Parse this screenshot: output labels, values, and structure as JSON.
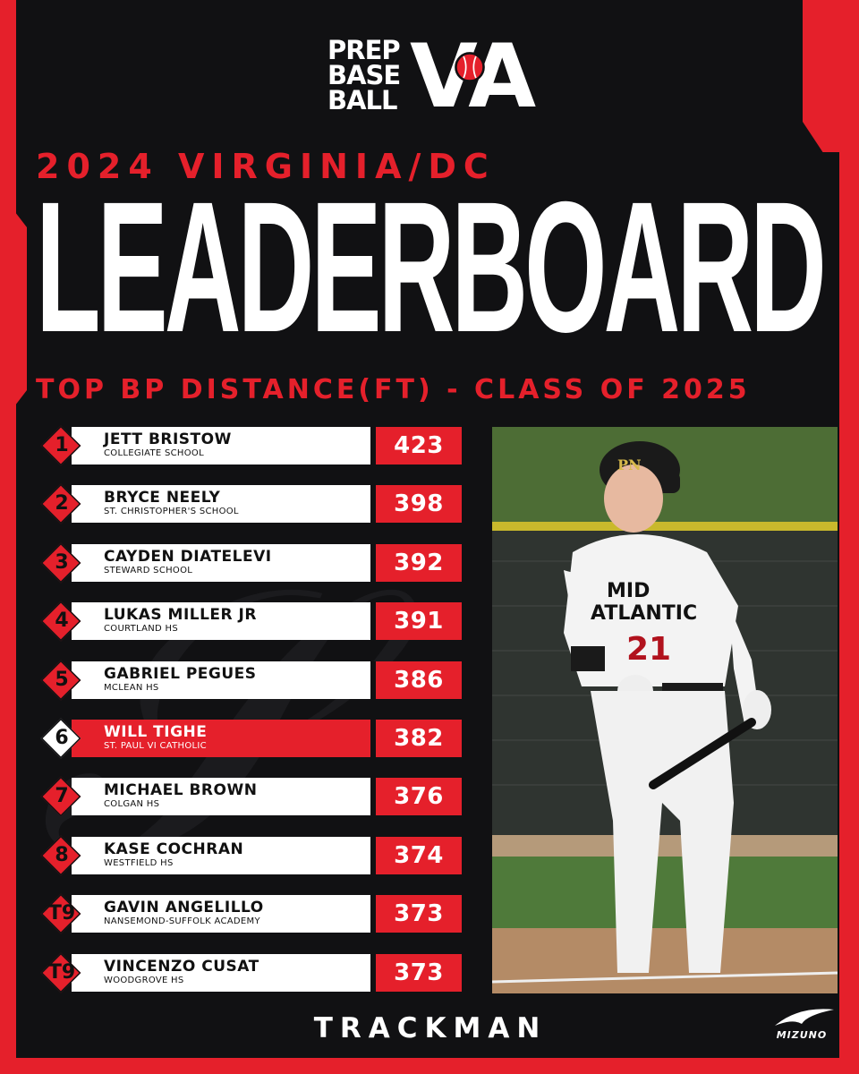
{
  "logo": {
    "line1": "PREP",
    "line2": "BASE",
    "line3": "BALL",
    "mark": "VA"
  },
  "header": {
    "subtitle_top": "2024 VIRGINIA/DC",
    "title": "LEADERBOARD",
    "subtitle_bottom": "TOP BP DISTANCE(FT) - CLASS OF 2025"
  },
  "leaderboard": [
    {
      "rank": "1",
      "name": "JETT BRISTOW",
      "school": "COLLEGIATE SCHOOL",
      "distance": "423"
    },
    {
      "rank": "2",
      "name": "BRYCE NEELY",
      "school": "ST. CHRISTOPHER'S SCHOOL",
      "distance": "398"
    },
    {
      "rank": "3",
      "name": "CAYDEN DIATELEVI",
      "school": "STEWARD SCHOOL",
      "distance": "392"
    },
    {
      "rank": "4",
      "name": "LUKAS MILLER JR",
      "school": "COURTLAND HS",
      "distance": "391"
    },
    {
      "rank": "5",
      "name": "GABRIEL PEGUES",
      "school": "MCLEAN HS",
      "distance": "386"
    },
    {
      "rank": "6",
      "name": "WILL TIGHE",
      "school": "ST. PAUL VI CATHOLIC",
      "distance": "382"
    },
    {
      "rank": "7",
      "name": "MICHAEL BROWN",
      "school": "COLGAN HS",
      "distance": "376"
    },
    {
      "rank": "8",
      "name": "KASE COCHRAN",
      "school": "WESTFIELD HS",
      "distance": "374"
    },
    {
      "rank": "T9",
      "name": "GAVIN ANGELILLO",
      "school": "NANSEMOND-SUFFOLK ACADEMY",
      "distance": "373"
    },
    {
      "rank": "T9",
      "name": "VINCENZO CUSAT",
      "school": "WOODGROVE HS",
      "distance": "373"
    }
  ],
  "highlighted_rank_index": 5,
  "photo": {
    "jersey_line1": "MID",
    "jersey_line2": "ATLANTIC",
    "jersey_number": "21",
    "helmet_logo": "PN"
  },
  "footer": {
    "sponsor_1": "TRACKMAN",
    "sponsor_2": "MIZUNO"
  },
  "colors": {
    "accent": "#e5202b",
    "background": "#111113",
    "bar": "#ffffff"
  },
  "icons": [
    "baseball-icon",
    "mizuno-runbird-icon"
  ]
}
